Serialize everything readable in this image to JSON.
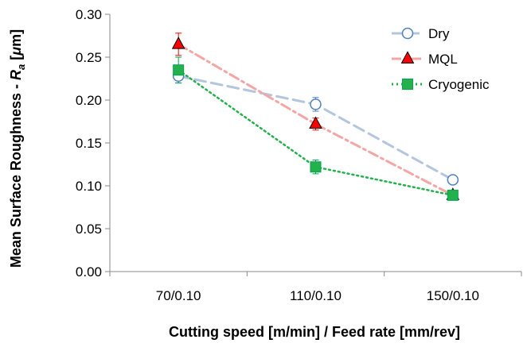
{
  "chart_data": {
    "type": "line",
    "xlabel": "Cutting speed [m/min] / Feed rate [mm/rev]",
    "ylabel_main": "Mean Surface Roughness - ",
    "ylabel_var": "R",
    "ylabel_sub": "a",
    "ylabel_unit_open": " [",
    "ylabel_unit_mu": "μ",
    "ylabel_unit_rest": "m]",
    "categories": [
      "70/0.10",
      "110/0.10",
      "150/0.10"
    ],
    "ylim": [
      0,
      0.3
    ],
    "yticks": [
      "0.00",
      "0.05",
      "0.10",
      "0.15",
      "0.20",
      "0.25",
      "0.30"
    ],
    "ytick_values": [
      0,
      0.05,
      0.1,
      0.15,
      0.2,
      0.25,
      0.3
    ],
    "grid": false,
    "legend_position": "top-right",
    "series": [
      {
        "name": "Dry",
        "values": [
          0.228,
          0.195,
          0.107
        ],
        "errors": [
          0.008,
          0.008,
          0.004
        ],
        "color": "#b4c6de",
        "marker_color": "#4f81bd",
        "marker": "circle",
        "marker_fill": "#ffffff",
        "line_style": "dashed"
      },
      {
        "name": "MQL",
        "values": [
          0.265,
          0.172,
          0.089
        ],
        "errors": [
          0.013,
          0.007,
          0.004
        ],
        "color": "#f4a6a4",
        "marker_color": "#ff0000",
        "marker": "triangle",
        "marker_fill": "#ff0000",
        "line_style": "dashdot"
      },
      {
        "name": "Cryogenic",
        "values": [
          0.235,
          0.122,
          0.089
        ],
        "errors": [
          0.015,
          0.008,
          0.004
        ],
        "color": "#22b14c",
        "marker_color": "#00a550",
        "marker": "square",
        "marker_fill": "#22b14c",
        "line_style": "dotted"
      }
    ]
  }
}
